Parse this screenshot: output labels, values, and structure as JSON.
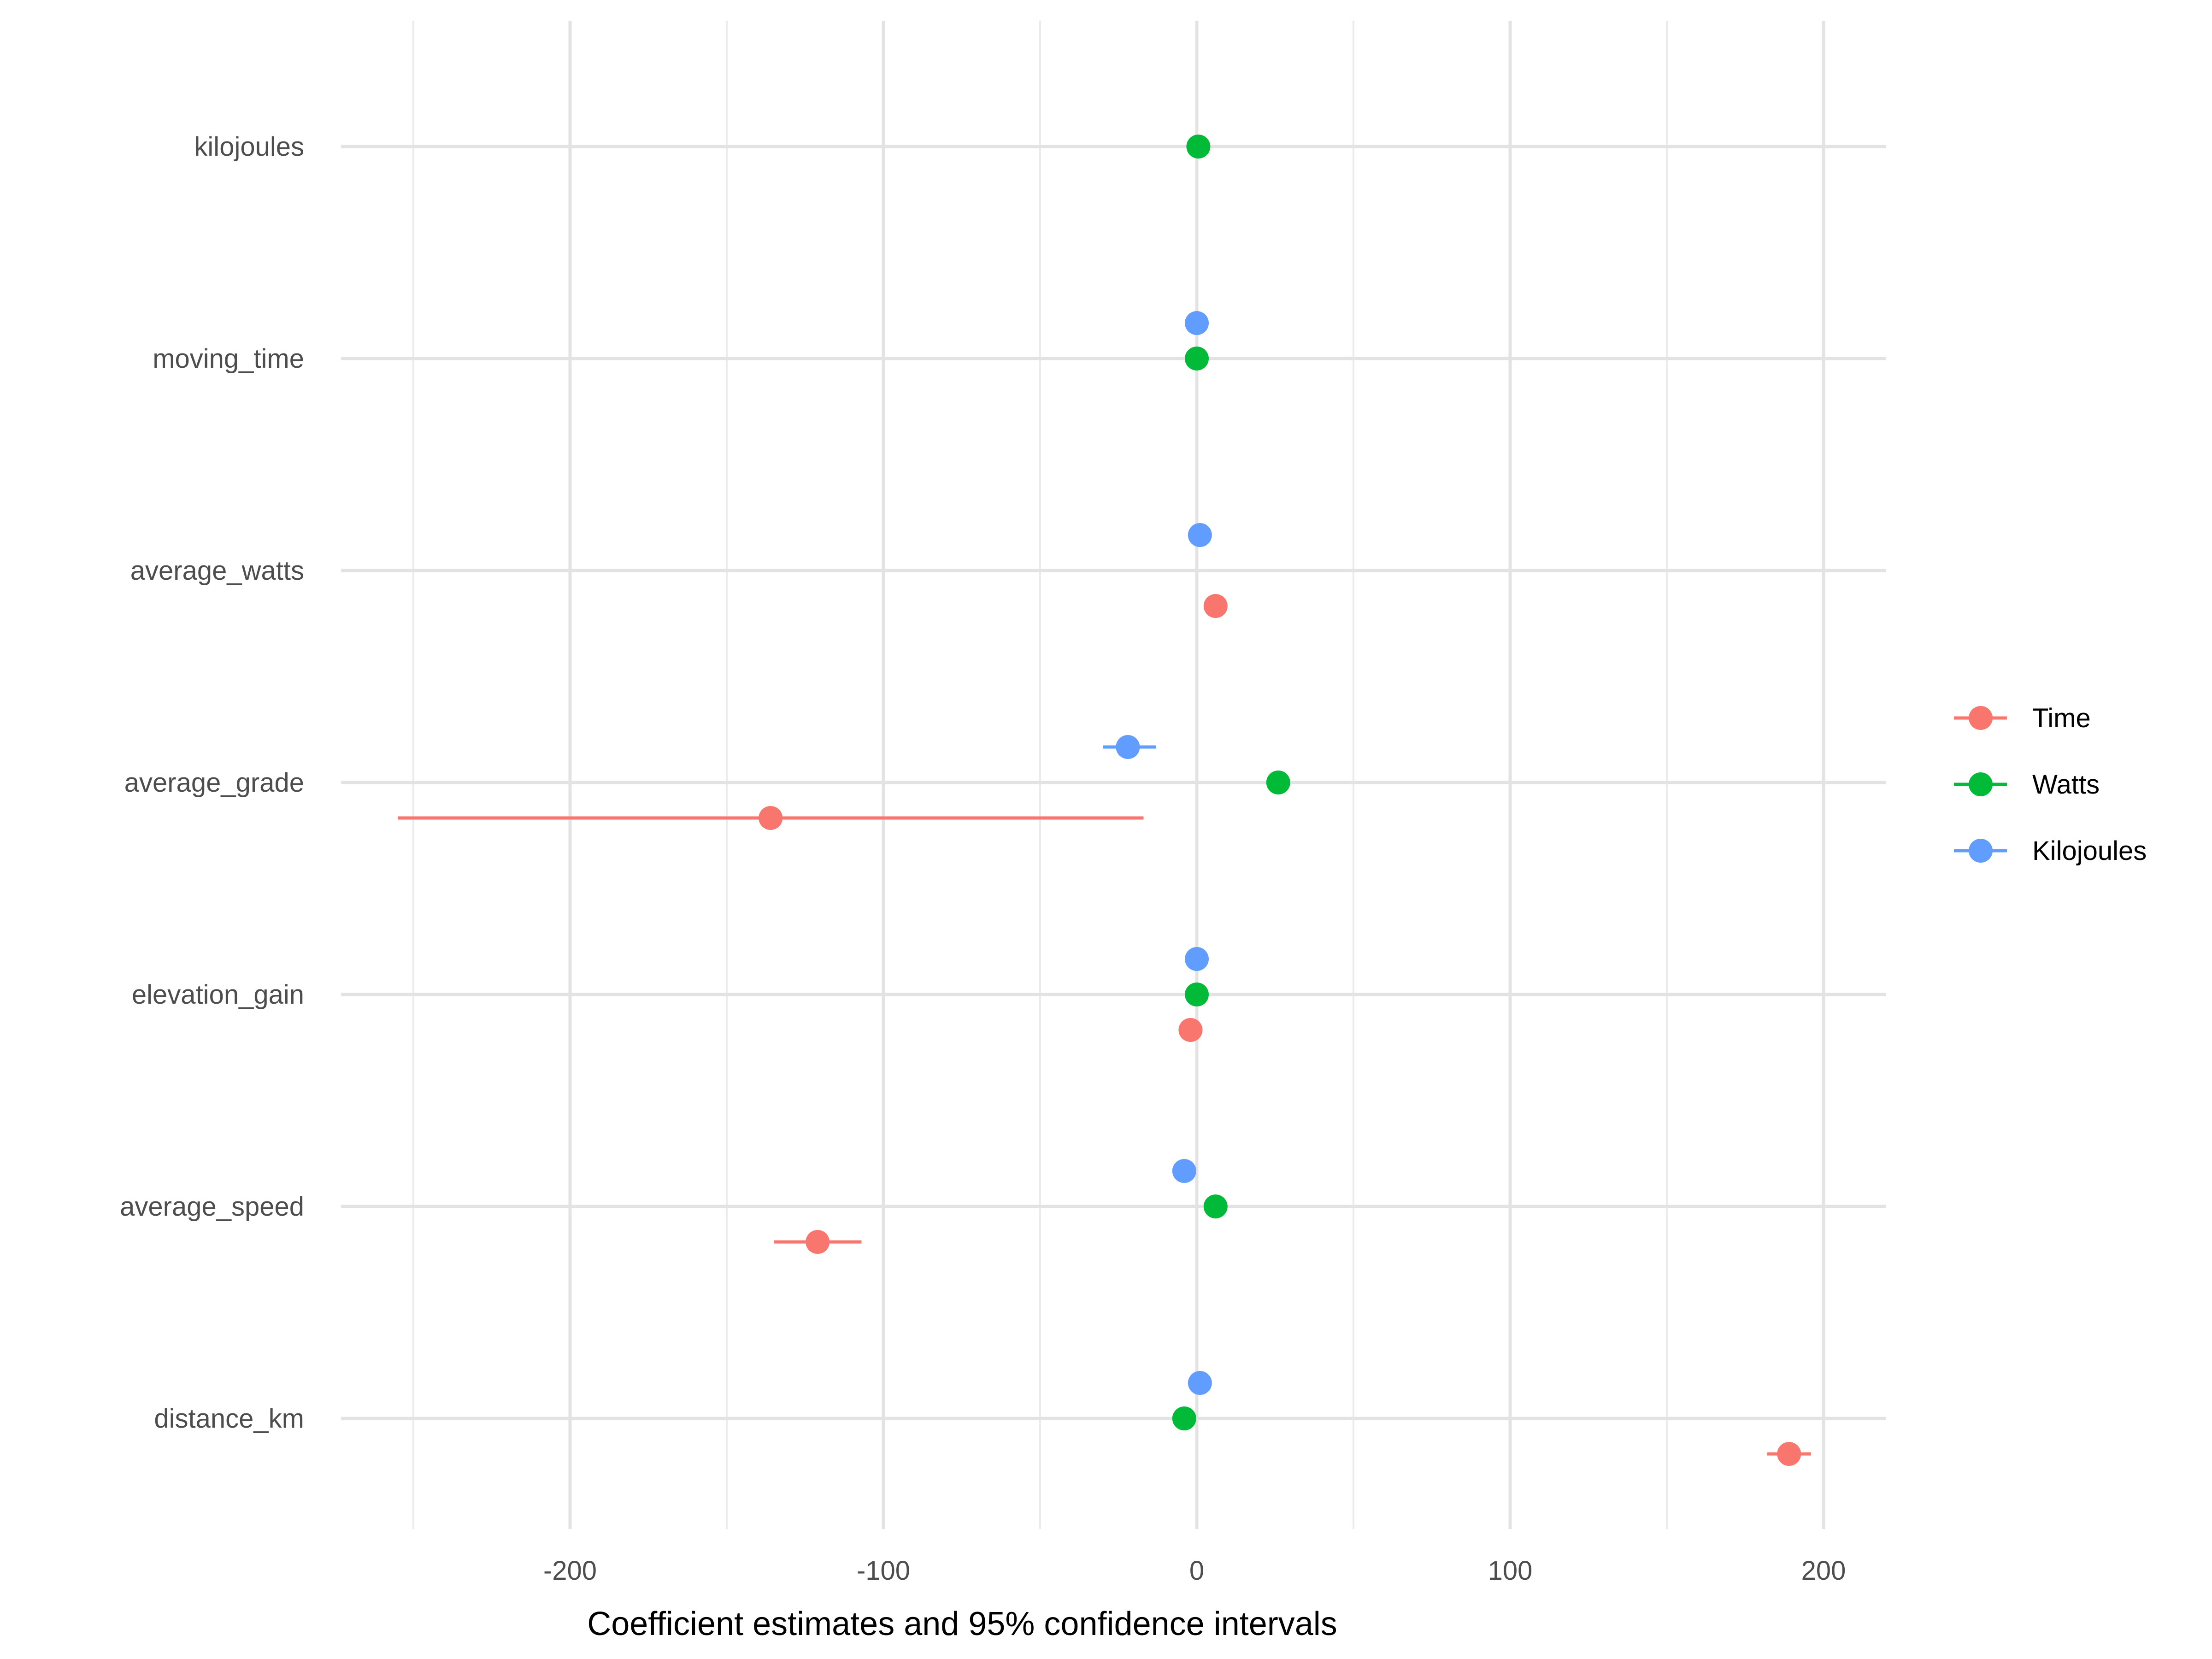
{
  "chart_data": {
    "type": "scatter",
    "subtype": "dot-and-whisker",
    "title": "",
    "xlabel": "Coefficient estimates and 95% confidence intervals",
    "ylabel": "",
    "xlim": [
      -280,
      220
    ],
    "x_ticks": [
      -200,
      -100,
      0,
      100,
      200
    ],
    "x_tick_labels": [
      "-200",
      "-100",
      "0",
      "100",
      "200"
    ],
    "grid": true,
    "legend_position": "right",
    "categories": [
      "distance_km",
      "average_speed",
      "elevation_gain",
      "average_grade",
      "average_watts",
      "moving_time",
      "kilojoules"
    ],
    "series": [
      {
        "name": "Time",
        "color": "#F8766D",
        "points": [
          {
            "term": "distance_km",
            "estimate": 189,
            "low": 182,
            "high": 196
          },
          {
            "term": "average_speed",
            "estimate": -121,
            "low": -135,
            "high": -107
          },
          {
            "term": "elevation_gain",
            "estimate": -2,
            "low": -2.5,
            "high": -1.5
          },
          {
            "term": "average_grade",
            "estimate": -136,
            "low": -255,
            "high": -17
          },
          {
            "term": "average_watts",
            "estimate": 6,
            "low": 5.5,
            "high": 6.5
          }
        ]
      },
      {
        "name": "Watts",
        "color": "#00BA38",
        "points": [
          {
            "term": "distance_km",
            "estimate": -4,
            "low": -4.5,
            "high": -3.5
          },
          {
            "term": "average_speed",
            "estimate": 6,
            "low": 5.5,
            "high": 6.5
          },
          {
            "term": "elevation_gain",
            "estimate": 0,
            "low": -0.5,
            "high": 0.5
          },
          {
            "term": "average_grade",
            "estimate": 26,
            "low": 25,
            "high": 27
          },
          {
            "term": "moving_time",
            "estimate": 0,
            "low": -0.5,
            "high": 0.5
          },
          {
            "term": "kilojoules",
            "estimate": 0.5,
            "low": 0,
            "high": 1
          }
        ]
      },
      {
        "name": "Kilojoules",
        "color": "#619CFF",
        "points": [
          {
            "term": "distance_km",
            "estimate": 1,
            "low": 0.5,
            "high": 1.5
          },
          {
            "term": "average_speed",
            "estimate": -4,
            "low": -4.5,
            "high": -3.5
          },
          {
            "term": "elevation_gain",
            "estimate": 0,
            "low": -0.5,
            "high": 0.5
          },
          {
            "term": "average_grade",
            "estimate": -22,
            "low": -30,
            "high": -13
          },
          {
            "term": "average_watts",
            "estimate": 1,
            "low": 0.5,
            "high": 1.5
          },
          {
            "term": "moving_time",
            "estimate": 0,
            "low": -0.5,
            "high": 0.5
          }
        ]
      }
    ],
    "legend": [
      {
        "label": "Time",
        "color": "#F8766D"
      },
      {
        "label": "Watts",
        "color": "#00BA38"
      },
      {
        "label": "Kilojoules",
        "color": "#619CFF"
      }
    ]
  }
}
